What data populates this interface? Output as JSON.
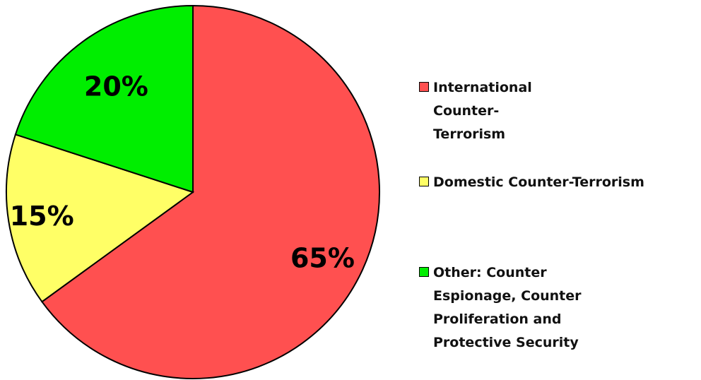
{
  "chart_data": {
    "type": "pie",
    "categories": [
      "International Counter-Terrorism",
      "Domestic Counter-Terrorism",
      "Other: Counter Espionage, Counter Proliferation and Protective Security"
    ],
    "values": [
      65,
      15,
      20
    ],
    "data_labels": [
      "65%",
      "15%",
      "20%"
    ],
    "colors": [
      "#ff5050",
      "#ffff66",
      "#00ee00"
    ],
    "start_angle_deg": 0,
    "direction": "clockwise",
    "legend_position": "right",
    "legend": [
      {
        "label": "International Counter-Terrorism",
        "color": "#ff5050"
      },
      {
        "label": "Domestic Counter-Terrorism",
        "color": "#ffff66"
      },
      {
        "label": "Other: Counter Espionage, Counter Proliferation and Protective Security",
        "color": "#00ee00"
      }
    ]
  }
}
